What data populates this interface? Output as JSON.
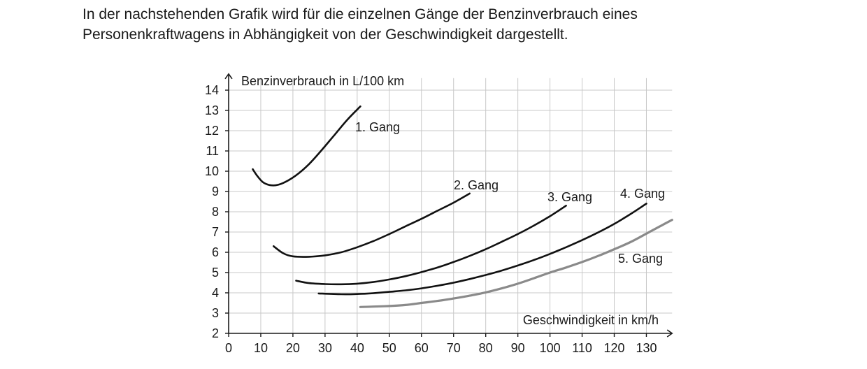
{
  "intro": {
    "line1": "In der nachstehenden Grafik wird für die einzelnen Gänge der Benzinverbrauch eines",
    "line2": "Personenkraftwagens in Abhängigkeit von der Geschwindigkeit dargestellt."
  },
  "chart_data": {
    "type": "line",
    "ylabel": "Benzinverbrauch in L/100 km",
    "xlabel": "Geschwindigkeit in km/h",
    "xlim": [
      0,
      138
    ],
    "ylim": [
      2,
      14.8
    ],
    "xticks": [
      0,
      10,
      20,
      30,
      40,
      50,
      60,
      70,
      80,
      90,
      100,
      110,
      120,
      130
    ],
    "yticks": [
      2,
      3,
      4,
      5,
      6,
      7,
      8,
      9,
      10,
      11,
      12,
      13,
      14
    ],
    "grid": true,
    "series": [
      {
        "name": "1. Gang",
        "color": "#111111",
        "points": [
          [
            7.5,
            10.1
          ],
          [
            9,
            9.75
          ],
          [
            11,
            9.42
          ],
          [
            14,
            9.3
          ],
          [
            17,
            9.42
          ],
          [
            21,
            9.8
          ],
          [
            25,
            10.35
          ],
          [
            29,
            11.05
          ],
          [
            33,
            11.8
          ],
          [
            37,
            12.55
          ],
          [
            41,
            13.2
          ]
        ]
      },
      {
        "name": "2. Gang",
        "color": "#111111",
        "points": [
          [
            14,
            6.3
          ],
          [
            17,
            5.95
          ],
          [
            20,
            5.8
          ],
          [
            25,
            5.78
          ],
          [
            30,
            5.85
          ],
          [
            35,
            6.0
          ],
          [
            40,
            6.25
          ],
          [
            45,
            6.55
          ],
          [
            50,
            6.9
          ],
          [
            55,
            7.28
          ],
          [
            60,
            7.65
          ],
          [
            65,
            8.05
          ],
          [
            70,
            8.45
          ],
          [
            75,
            8.9
          ]
        ]
      },
      {
        "name": "3. Gang",
        "color": "#111111",
        "points": [
          [
            21,
            4.6
          ],
          [
            25,
            4.48
          ],
          [
            30,
            4.43
          ],
          [
            35,
            4.42
          ],
          [
            40,
            4.45
          ],
          [
            45,
            4.53
          ],
          [
            50,
            4.66
          ],
          [
            55,
            4.82
          ],
          [
            60,
            5.02
          ],
          [
            65,
            5.25
          ],
          [
            70,
            5.52
          ],
          [
            75,
            5.82
          ],
          [
            80,
            6.15
          ],
          [
            85,
            6.52
          ],
          [
            90,
            6.9
          ],
          [
            95,
            7.32
          ],
          [
            100,
            7.78
          ],
          [
            105,
            8.3
          ]
        ]
      },
      {
        "name": "4. Gang",
        "color": "#111111",
        "points": [
          [
            28,
            3.97
          ],
          [
            35,
            3.93
          ],
          [
            40,
            3.94
          ],
          [
            45,
            3.98
          ],
          [
            50,
            4.05
          ],
          [
            55,
            4.12
          ],
          [
            60,
            4.22
          ],
          [
            65,
            4.35
          ],
          [
            70,
            4.5
          ],
          [
            75,
            4.68
          ],
          [
            80,
            4.88
          ],
          [
            85,
            5.1
          ],
          [
            90,
            5.35
          ],
          [
            95,
            5.62
          ],
          [
            100,
            5.92
          ],
          [
            105,
            6.25
          ],
          [
            110,
            6.6
          ],
          [
            115,
            6.98
          ],
          [
            120,
            7.4
          ],
          [
            125,
            7.88
          ],
          [
            130,
            8.4
          ]
        ]
      },
      {
        "name": "5. Gang",
        "color": "#8a8a8a",
        "points": [
          [
            41,
            3.3
          ],
          [
            45,
            3.32
          ],
          [
            50,
            3.35
          ],
          [
            55,
            3.4
          ],
          [
            60,
            3.5
          ],
          [
            65,
            3.6
          ],
          [
            70,
            3.72
          ],
          [
            75,
            3.86
          ],
          [
            80,
            4.02
          ],
          [
            85,
            4.22
          ],
          [
            90,
            4.45
          ],
          [
            95,
            4.72
          ],
          [
            100,
            5.0
          ],
          [
            105,
            5.25
          ],
          [
            110,
            5.52
          ],
          [
            115,
            5.82
          ],
          [
            120,
            6.15
          ],
          [
            125,
            6.5
          ],
          [
            130,
            6.92
          ],
          [
            135,
            7.35
          ],
          [
            138,
            7.6
          ]
        ]
      }
    ]
  }
}
